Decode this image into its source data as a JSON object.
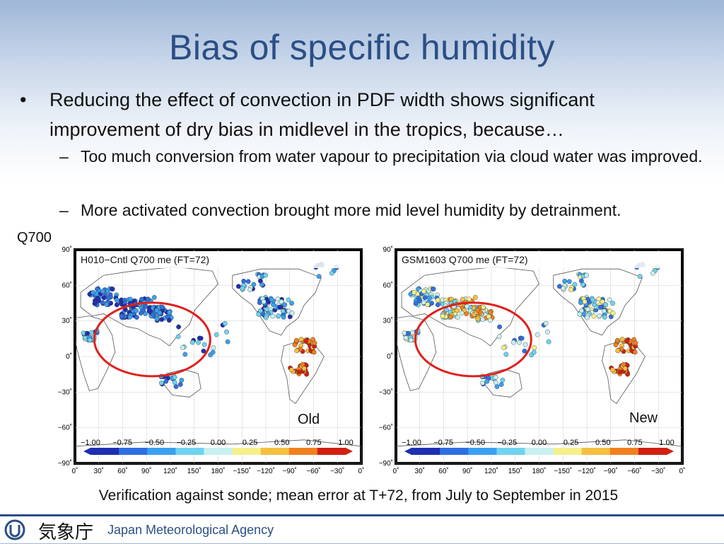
{
  "slide": {
    "title": "Bias of specific humidity",
    "bullet": "Reducing the effect of convection in PDF width shows significant improvement of dry bias in midlevel in the tropics, because…",
    "bullet_symbol": "•",
    "sub_symbol": "–",
    "sub_items": [
      "Too much conversion from water vapour to precipitation via cloud water was improved.",
      "More activated convection brought more mid level humidity by detrainment."
    ],
    "level_label": "Q700",
    "caption": "Verification against sonde; mean error at T+72, from July to September in 2015"
  },
  "maps": [
    {
      "title": "H010−Cntl Q700 me (FT=72)",
      "tag": "Old",
      "palette": "old"
    },
    {
      "title": "GSM1603 Q700 me (FT=72)",
      "tag": "New",
      "palette": "new"
    }
  ],
  "axes": {
    "lat_ticks": [
      "90˚",
      "60˚",
      "30˚",
      "0˚",
      "−30˚",
      "−60˚",
      "−90˚"
    ],
    "lon_ticks": [
      "0˚",
      "30˚",
      "60˚",
      "90˚",
      "120˚",
      "150˚",
      "180˚",
      "−150˚",
      "−120˚",
      "−90˚",
      "−60˚",
      "−30˚",
      "0˚"
    ]
  },
  "colorbar": {
    "ticks": [
      "−1.00",
      "−0.75",
      "−0.50",
      "−0.25",
      "0.00",
      "0.25",
      "0.50",
      "0.75",
      "1.00"
    ],
    "colors": [
      "#1f2fb0",
      "#2f6fe0",
      "#3aa0f0",
      "#6fd3f0",
      "#c8f0f0",
      "#f5f08a",
      "#f5c040",
      "#f08020",
      "#d02010"
    ]
  },
  "footer": {
    "agency_jp": "気象庁",
    "agency_en": "Japan Meteorological Agency",
    "accent": "#2b4f86"
  }
}
